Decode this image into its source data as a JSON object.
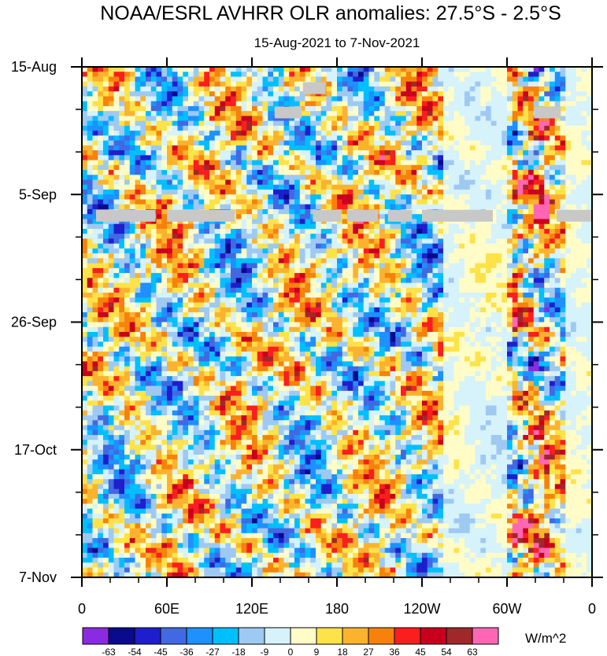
{
  "chart_data": {
    "type": "heatmap",
    "title": "NOAA/ESRL AVHRR OLR anomalies: 27.5°S - 2.5°S",
    "subtitle": "15-Aug-2021 to 7-Nov-2021",
    "x_ticks": [
      "0",
      "60E",
      "120E",
      "180",
      "120W",
      "60W",
      "0"
    ],
    "x_range_deg": [
      0,
      360
    ],
    "y_ticks": [
      "15-Aug",
      "5-Sep",
      "26-Sep",
      "17-Oct",
      "7-Nov"
    ],
    "y_range_days": [
      0,
      84
    ],
    "colorbar": {
      "unit_label": "W/m^2",
      "labels": [
        "-63",
        "-54",
        "-45",
        "-36",
        "-27",
        "-18",
        "-9",
        "0",
        "9",
        "18",
        "27",
        "36",
        "45",
        "54",
        "63"
      ],
      "colors": [
        "#8a2be2",
        "#0a0a8c",
        "#1e1ecc",
        "#4169e1",
        "#1e90ff",
        "#00bfff",
        "#9ec9f2",
        "#d6f2fb",
        "#fffcc8",
        "#fde24a",
        "#fbb32f",
        "#f7820b",
        "#fb1e1e",
        "#c8001e",
        "#a0282a",
        "#ff66b4"
      ]
    },
    "missing_data_segments": [
      {
        "day": 7.5,
        "lon_start": 136,
        "lon_end": 155
      },
      {
        "day": 7.5,
        "lon_start": 319,
        "lon_end": 338
      },
      {
        "day": 3.5,
        "lon_start": 156,
        "lon_end": 172
      }
    ],
    "missing_data_row": {
      "day": 24.5,
      "segments": [
        [
          10,
          30
        ],
        [
          30,
          52
        ],
        [
          60,
          108
        ],
        [
          163,
          183
        ],
        [
          187,
          209
        ],
        [
          216,
          233
        ],
        [
          240,
          290
        ],
        [
          335,
          360
        ]
      ]
    }
  }
}
